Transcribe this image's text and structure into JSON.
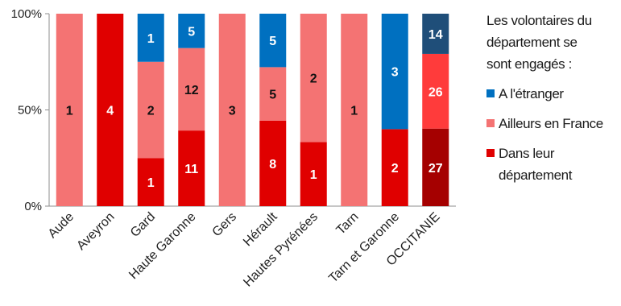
{
  "chart_data": {
    "type": "bar",
    "stacked": true,
    "normalized": true,
    "categories": [
      "Aude",
      "Aveyron",
      "Gard",
      "Haute Garonne",
      "Gers",
      "Hérault",
      "Hautes Pyrénées",
      "Tarn",
      "Tarn et Garonne",
      "OCCITANIE"
    ],
    "series": [
      {
        "name": "Dans leur département",
        "color": "#e00000",
        "values": [
          0,
          4,
          1,
          11,
          0,
          8,
          1,
          0,
          2,
          27
        ]
      },
      {
        "name": "Ailleurs en France",
        "color": "#f47373",
        "values": [
          1,
          0,
          2,
          12,
          3,
          5,
          2,
          1,
          0,
          26
        ]
      },
      {
        "name": "A l'étranger",
        "color": "#0070c0",
        "values": [
          0,
          0,
          1,
          5,
          0,
          5,
          0,
          0,
          3,
          14
        ]
      }
    ],
    "highlight_colors": {
      "Dans leur département": "#a50000",
      "Ailleurs en France": "#ff3b3b",
      "A l'étranger": "#1f4e79"
    },
    "highlight_category": "OCCITANIE",
    "y_ticks": [
      "0%",
      "50%",
      "100%"
    ],
    "ylim": [
      0,
      100
    ],
    "legend_position": "right",
    "grid": false
  },
  "legend": {
    "title_lines": [
      "Les volontaires du",
      "département se",
      "sont engagés :"
    ],
    "items": [
      {
        "lines": [
          "A l'étranger"
        ],
        "color": "#0070c0"
      },
      {
        "lines": [
          "Ailleurs en France"
        ],
        "color": "#f47373"
      },
      {
        "lines": [
          "Dans leur",
          "département"
        ],
        "color": "#e00000"
      }
    ]
  }
}
